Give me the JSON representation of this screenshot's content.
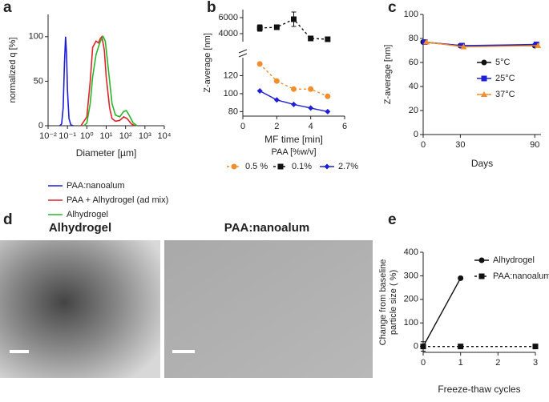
{
  "chart_data": [
    {
      "panel": "a",
      "type": "line",
      "log_x": true,
      "x_label": "Diameter [µm]",
      "y_label": "normalized q [%]",
      "xlim": [
        0.01,
        10000
      ],
      "xticks": [
        {
          "value": 0.01,
          "label": "10⁻²"
        },
        {
          "value": 0.1,
          "label": "10⁻¹"
        },
        {
          "value": 1,
          "label": "10⁰"
        },
        {
          "value": 10,
          "label": "10¹"
        },
        {
          "value": 100,
          "label": "10²"
        },
        {
          "value": 1000,
          "label": "10³"
        },
        {
          "value": 10000,
          "label": "10⁴"
        }
      ],
      "ylim": [
        0,
        125
      ],
      "yticks": [
        0,
        50,
        100
      ],
      "legend": "bottom",
      "series": [
        {
          "name": "PAA:nanoalum",
          "color": "#1f1fd6",
          "x": [
            0.04,
            0.05,
            0.06,
            0.07,
            0.08,
            0.09,
            0.1,
            0.12,
            0.15,
            0.2
          ],
          "values": [
            0,
            2,
            20,
            70,
            100,
            80,
            40,
            8,
            1,
            0
          ]
        },
        {
          "name": "PAA + Alhydrogel (ad mix)",
          "color": "#e0242a",
          "x": [
            0.5,
            1,
            1.5,
            2,
            3,
            4,
            5,
            6,
            8,
            10,
            15,
            20,
            30,
            50,
            80,
            120,
            200,
            300
          ],
          "values": [
            0,
            10,
            50,
            88,
            95,
            93,
            98,
            100,
            85,
            55,
            20,
            8,
            5,
            6,
            10,
            8,
            2,
            0
          ]
        },
        {
          "name": "Alhydrogel",
          "color": "#2bb52b",
          "x": [
            0.7,
            1,
            1.5,
            2,
            3,
            5,
            7,
            9,
            12,
            20,
            30,
            50,
            80,
            110,
            150,
            250,
            400
          ],
          "values": [
            0,
            3,
            25,
            55,
            80,
            95,
            100,
            95,
            70,
            25,
            12,
            10,
            16,
            17,
            12,
            3,
            0
          ]
        }
      ]
    },
    {
      "panel": "b",
      "type": "line",
      "x_label": "MF time [min]",
      "y_label": "Z-average [nm]",
      "legend_title": "PAA [%w/v]",
      "legend": "bottom",
      "xlim": [
        0,
        6
      ],
      "xticks": [
        0,
        2,
        4,
        6
      ],
      "ylim": [
        75,
        140
      ],
      "yticks": [
        80,
        100,
        120
      ],
      "y2lim": [
        3000,
        7000
      ],
      "y2ticks": [
        4000,
        6000
      ],
      "x": [
        1,
        2,
        3,
        4,
        5
      ],
      "series": [
        {
          "name": "0.5 %",
          "color": "#f28e2b",
          "marker": "circle",
          "dash": true,
          "values": [
            133,
            114,
            105,
            105,
            97
          ]
        },
        {
          "name": "0.1%",
          "color": "#111111",
          "marker": "square",
          "dash": true,
          "axis": "y2",
          "values": [
            4700,
            4800,
            5800,
            3400,
            3300
          ],
          "errors": [
            400,
            250,
            900,
            200,
            150
          ]
        },
        {
          "name": "2.7%",
          "color": "#1f1fd6",
          "marker": "diamond",
          "values": [
            103,
            93,
            88,
            84,
            80
          ]
        }
      ]
    },
    {
      "panel": "c",
      "type": "line",
      "x_label": "Days",
      "y_label": "Z-average [nm]",
      "legend": "right",
      "xlim": [
        0,
        95
      ],
      "xticks": [
        0,
        30,
        90
      ],
      "ylim": [
        0,
        100
      ],
      "yticks": [
        0,
        20,
        40,
        60,
        80,
        100
      ],
      "x": [
        0,
        30,
        90
      ],
      "series": [
        {
          "name": "5°C",
          "color": "#111111",
          "marker": "circle",
          "values": [
            77,
            74,
            74
          ]
        },
        {
          "name": "25°C",
          "color": "#1f1fd6",
          "marker": "square",
          "values": [
            77,
            74,
            75
          ]
        },
        {
          "name": "37°C",
          "color": "#f28e2b",
          "marker": "triangle",
          "values": [
            77,
            73,
            74
          ]
        }
      ]
    },
    {
      "panel": "e",
      "type": "line",
      "x_label": "Freeze-thaw cycles",
      "y_label": [
        "Change from baseline",
        "particle size ( %)"
      ],
      "legend": "upper right",
      "xlim": [
        0,
        3
      ],
      "xticks": [
        0,
        1,
        2,
        3
      ],
      "ylim": [
        -25,
        400
      ],
      "yticks": [
        0,
        100,
        200,
        300,
        400
      ],
      "series": [
        {
          "name": "Alhydrogel",
          "color": "#111111",
          "marker": "circle",
          "x": [
            0,
            1
          ],
          "values": [
            0,
            290
          ],
          "errors": [
            20,
            5
          ]
        },
        {
          "name": "PAA:nanoalum",
          "color": "#111111",
          "marker": "square",
          "dash": true,
          "x": [
            0,
            1,
            3
          ],
          "values": [
            0,
            0,
            0
          ]
        }
      ]
    }
  ],
  "images": {
    "panel": "d",
    "titles": [
      "Alhydrogel",
      "PAA:nanoalum"
    ]
  }
}
